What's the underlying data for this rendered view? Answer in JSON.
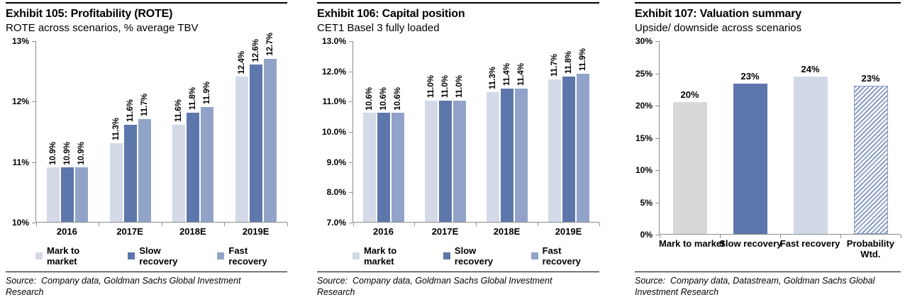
{
  "chart_data": [
    {
      "type": "bar",
      "title": "Exhibit 105: Profitability (ROTE)",
      "subtitle": "ROTE across scenarios, % average TBV",
      "categories": [
        "2016",
        "2017E",
        "2018E",
        "2019E"
      ],
      "series": [
        {
          "name": "Mark to market",
          "color": "#d3d9e7",
          "values": [
            10.9,
            11.3,
            11.6,
            12.4
          ],
          "labels": [
            "10.9%",
            "11.3%",
            "11.6%",
            "12.4%"
          ]
        },
        {
          "name": "Slow recovery",
          "color": "#5d77ad",
          "values": [
            10.9,
            11.6,
            11.8,
            12.6
          ],
          "labels": [
            "10.9%",
            "11.6%",
            "11.8%",
            "12.6%"
          ]
        },
        {
          "name": "Fast recovery",
          "color": "#92a3c9",
          "values": [
            10.9,
            11.7,
            11.9,
            12.7
          ],
          "labels": [
            "10.9%",
            "11.7%",
            "11.9%",
            "12.7%"
          ]
        }
      ],
      "ylim": [
        10,
        13
      ],
      "yticks": [
        {
          "value": 13,
          "label": "13%"
        },
        {
          "value": 12,
          "label": "12%"
        },
        {
          "value": 11,
          "label": "11%"
        },
        {
          "value": 10,
          "label": "10%"
        }
      ],
      "grid": false,
      "legend_position": "bottom",
      "source_note": "Source:  Company data, Goldman Sachs Global Investment Research"
    },
    {
      "type": "bar",
      "title": "Exhibit 106: Capital position",
      "subtitle": "CET1 Basel 3 fully loaded",
      "categories": [
        "2016",
        "2017E",
        "2018E",
        "2019E"
      ],
      "series": [
        {
          "name": "Mark to market",
          "color": "#d3d9e7",
          "values": [
            10.6,
            11.0,
            11.3,
            11.7
          ],
          "labels": [
            "10.6%",
            "11.0%",
            "11.3%",
            "11.7%"
          ]
        },
        {
          "name": "Slow recovery",
          "color": "#5d77ad",
          "values": [
            10.6,
            11.0,
            11.4,
            11.8
          ],
          "labels": [
            "10.6%",
            "11.0%",
            "11.4%",
            "11.8%"
          ]
        },
        {
          "name": "Fast recovery",
          "color": "#92a3c9",
          "values": [
            10.6,
            11.0,
            11.4,
            11.9
          ],
          "labels": [
            "10.6%",
            "11.0%",
            "11.4%",
            "11.9%"
          ]
        }
      ],
      "ylim": [
        7,
        13
      ],
      "yticks": [
        {
          "value": 13,
          "label": "13.0%"
        },
        {
          "value": 12,
          "label": "12.0%"
        },
        {
          "value": 11,
          "label": "11.0%"
        },
        {
          "value": 10,
          "label": "10.0%"
        },
        {
          "value": 9,
          "label": "9.0%"
        },
        {
          "value": 8,
          "label": "8.0%"
        },
        {
          "value": 7,
          "label": "7.0%"
        }
      ],
      "grid": false,
      "legend_position": "bottom",
      "source_note": "Source:  Company data, Goldman Sachs Global Investment Research"
    },
    {
      "type": "bar",
      "title": "Exhibit 107: Valuation summary",
      "subtitle": "Upside/ downside across scenarios",
      "categories": [
        "Mark to market",
        "Slow recovery",
        "Fast recovery",
        "Probability\nWtd."
      ],
      "values": [
        20.4,
        23.3,
        24.4,
        23.0
      ],
      "bar_labels": [
        "20%",
        "23%",
        "24%",
        "23%"
      ],
      "bar_styles": [
        {
          "fill": "#d8d8d8"
        },
        {
          "fill": "#5d77ad"
        },
        {
          "fill": "#d1d8e5"
        },
        {
          "fill": "hatch",
          "hatch_color": "#8b9dc6"
        }
      ],
      "ylim": [
        0,
        30
      ],
      "yticks": [
        {
          "value": 30,
          "label": "30%"
        },
        {
          "value": 25,
          "label": "25%"
        },
        {
          "value": 20,
          "label": "20%"
        },
        {
          "value": 15,
          "label": "15%"
        },
        {
          "value": 10,
          "label": "10%"
        },
        {
          "value": 5,
          "label": "5%"
        },
        {
          "value": 0,
          "label": "0%"
        }
      ],
      "grid": false,
      "legend_position": "none",
      "source_note": "Source:  Company data, Datastream, Goldman Sachs Global Investment Research"
    }
  ]
}
